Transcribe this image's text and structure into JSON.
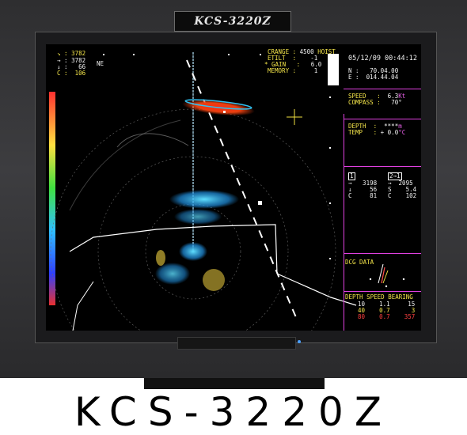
{
  "device": {
    "logo_text": "KCS-3220Z",
    "model_title": "KCS-3220Z"
  },
  "left_readout": {
    "arrow_down": "3782",
    "arrow_right": "3782",
    "down_val": "66",
    "dir": "NE",
    "c_label": "C",
    "c_val": "106"
  },
  "settings": {
    "crange_label": "CRANGE",
    "crange_value": "4500",
    "hoist": "HOIST",
    "etilt_label": "ETILT",
    "etilt_value": "-1",
    "gain_label": "GAIN",
    "gain_value": "6.0",
    "memory_label": "MEMORY",
    "memory_value": "1"
  },
  "datetime": "05/12/09 00:44:12",
  "position": {
    "n_label": "N",
    "n_value": "70.04.00",
    "e_label": "E",
    "e_value": "014.44.04"
  },
  "nav": {
    "speed_label": "SPEED",
    "speed_value": "6.3",
    "speed_unit": "Kt",
    "compass_label": "COMPASS",
    "compass_value": "70°"
  },
  "env": {
    "depth_label": "DEPTH",
    "depth_value": "****",
    "depth_unit": "m",
    "temp_label": "TEMP",
    "temp_value": "+ 0.0",
    "temp_unit": "°C"
  },
  "markers": {
    "col1_header": "1",
    "col2_header": "2→1",
    "row1_c1": "→   3198",
    "row1_c2": "→  2095",
    "row2_c1": "↓     56",
    "row2_c2": "S    5.4",
    "row3_c1": "C     81",
    "row3_c2": "C    102"
  },
  "dcg": {
    "label": "DCG DATA"
  },
  "current_table": {
    "headers": [
      "DEPTH",
      "SPEED",
      "BEARING"
    ],
    "rows": [
      {
        "depth": "10",
        "speed": "1.1",
        "bearing": "15"
      },
      {
        "depth": "40",
        "speed": "0.7",
        "bearing": "3"
      },
      {
        "depth": "80",
        "speed": "0.7",
        "bearing": "357"
      }
    ]
  },
  "colors": {
    "screen_bg": "#000000",
    "text_white": "#f2f2f2",
    "text_yellow": "#f5e64a",
    "text_magenta": "#e860e8",
    "text_red": "#ff4040",
    "echo_red": "#e83020",
    "echo_cyan": "#30d0e8",
    "echo_yellow": "#f0e040"
  }
}
